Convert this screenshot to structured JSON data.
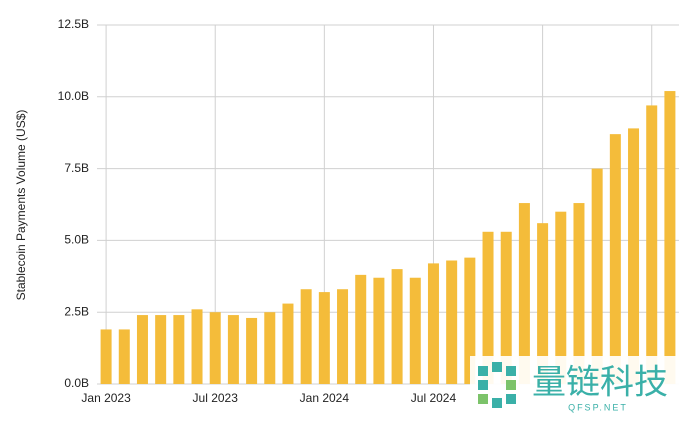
{
  "chart_data": {
    "type": "bar",
    "ylabel": "Stablecoin Payments Volume (US$)",
    "categories": [
      "Jan 2023",
      null,
      null,
      null,
      null,
      null,
      "Jul 2023",
      null,
      null,
      null,
      null,
      null,
      "Jan 2024",
      null,
      null,
      null,
      null,
      null,
      "Jul 2024",
      null,
      null,
      null,
      null,
      null,
      null,
      null,
      null,
      null,
      null,
      null,
      null,
      null
    ],
    "values": [
      1.9,
      1.9,
      2.4,
      2.4,
      2.4,
      2.6,
      2.5,
      2.4,
      2.3,
      2.5,
      2.8,
      3.3,
      3.2,
      3.3,
      3.8,
      3.7,
      4.0,
      3.7,
      4.2,
      4.3,
      4.4,
      5.3,
      5.3,
      6.3,
      5.6,
      6.0,
      6.3,
      7.5,
      8.7,
      8.9,
      9.7,
      10.2
    ],
    "color": "#f4bc3a",
    "ylim": [
      0,
      12.5
    ],
    "yticks": [
      {
        "value": 0,
        "label": "0.0B"
      },
      {
        "value": 2.5,
        "label": "2.5B"
      },
      {
        "value": 5,
        "label": "5.0B"
      },
      {
        "value": 7.5,
        "label": "7.5B"
      },
      {
        "value": 10,
        "label": "10.0B"
      },
      {
        "value": 12.5,
        "label": "12.5B"
      }
    ],
    "grid": true
  },
  "watermark": {
    "name": "量链科技",
    "site": "QFSP.NET"
  }
}
